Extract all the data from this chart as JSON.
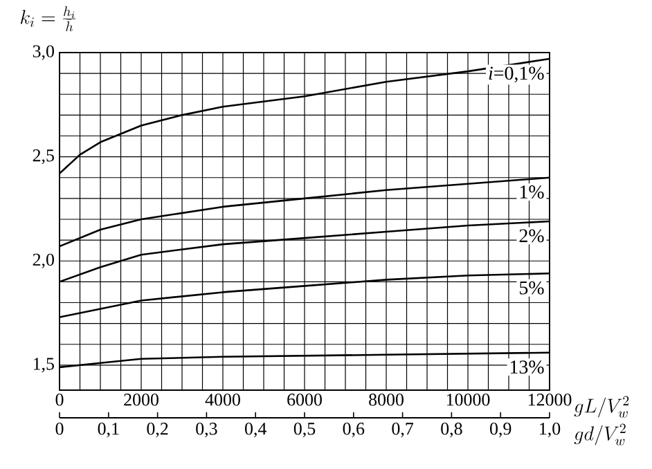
{
  "chart_data": {
    "type": "line",
    "ylabel": "k_i=\\frac{h_i}{\\bar{h}}",
    "xlabel": "gL/V_w^2",
    "x2label": "gd/V_w^2",
    "xlim": [
      0,
      12000
    ],
    "ylim": [
      1.38,
      3.0
    ],
    "x2lim": [
      0,
      1
    ],
    "grid": true,
    "xticks": [
      0,
      {
        "value": 500,
        "label": null
      },
      {
        "value": 1000,
        "label": null
      },
      {
        "value": 1500,
        "label": null
      },
      2000,
      {
        "value": 2500,
        "label": null
      },
      {
        "value": 3000,
        "label": null
      },
      {
        "value": 3500,
        "label": null
      },
      4000,
      {
        "value": 4500,
        "label": null
      },
      {
        "value": 5000,
        "label": null
      },
      {
        "value": 5500,
        "label": null
      },
      6000,
      {
        "value": 6500,
        "label": null
      },
      {
        "value": 7000,
        "label": null
      },
      {
        "value": 7500,
        "label": null
      },
      8000,
      {
        "value": 8500,
        "label": null
      },
      {
        "value": 9000,
        "label": null
      },
      {
        "value": 9500,
        "label": null
      },
      10000,
      {
        "value": 10500,
        "label": null
      },
      {
        "value": 11000,
        "label": null
      },
      {
        "value": 11500,
        "label": null
      },
      12000
    ],
    "yticks": [
      {
        "value": 1.5,
        "label": "1,5"
      },
      {
        "value": 1.6,
        "label": null
      },
      {
        "value": 1.7,
        "label": null
      },
      {
        "value": 1.8,
        "label": null
      },
      {
        "value": 1.9,
        "label": null
      },
      {
        "value": 2.0,
        "label": "2,0"
      },
      {
        "value": 2.1,
        "label": null
      },
      {
        "value": 2.2,
        "label": null
      },
      {
        "value": 2.3,
        "label": null
      },
      {
        "value": 2.4,
        "label": null
      },
      {
        "value": 2.5,
        "label": "2,5"
      },
      {
        "value": 2.6,
        "label": null
      },
      {
        "value": 2.7,
        "label": null
      },
      {
        "value": 2.8,
        "label": null
      },
      {
        "value": 2.9,
        "label": null
      },
      {
        "value": 3.0,
        "label": "3,0"
      }
    ],
    "x2ticks": [
      0,
      {
        "value": 0.1,
        "label": "0,1"
      },
      {
        "value": 0.2,
        "label": "0,2"
      },
      {
        "value": 0.3,
        "label": "0,3"
      },
      {
        "value": 0.4,
        "label": "0,4"
      },
      {
        "value": 0.5,
        "label": "0,5"
      },
      {
        "value": 0.6,
        "label": "0,6"
      },
      {
        "value": 0.7,
        "label": "0,7"
      },
      {
        "value": 0.8,
        "label": "0,8"
      },
      {
        "value": 0.9,
        "label": "0,9"
      },
      {
        "value": 1.0,
        "label": "1,0"
      }
    ],
    "series": [
      {
        "name": "*i*=0,1%",
        "color": "#000000",
        "x": [
          0,
          500,
          1000,
          1500,
          2000,
          3000,
          4000,
          6000,
          8000,
          10000,
          12000
        ],
        "values": [
          2.42,
          2.51,
          2.57,
          2.61,
          2.65,
          2.7,
          2.74,
          2.79,
          2.86,
          2.91,
          2.97
        ]
      },
      {
        "name": "1%",
        "color": "#000000",
        "x": [
          0,
          1000,
          2000,
          4000,
          6000,
          8000,
          10000,
          12000
        ],
        "values": [
          2.07,
          2.15,
          2.2,
          2.26,
          2.3,
          2.34,
          2.37,
          2.4
        ]
      },
      {
        "name": "2%",
        "color": "#000000",
        "x": [
          0,
          1000,
          2000,
          4000,
          6000,
          8000,
          10000,
          12000
        ],
        "values": [
          1.9,
          1.97,
          2.03,
          2.08,
          2.11,
          2.14,
          2.17,
          2.19
        ]
      },
      {
        "name": "5%",
        "color": "#000000",
        "x": [
          0,
          1000,
          2000,
          4000,
          6000,
          8000,
          10000,
          12000
        ],
        "values": [
          1.73,
          1.77,
          1.81,
          1.85,
          1.88,
          1.91,
          1.93,
          1.94
        ]
      },
      {
        "name": "13%",
        "color": "#000000",
        "x": [
          0,
          1000,
          2000,
          4000,
          8000,
          12000
        ],
        "values": [
          1.49,
          1.51,
          1.53,
          1.54,
          1.55,
          1.56
        ]
      }
    ]
  }
}
